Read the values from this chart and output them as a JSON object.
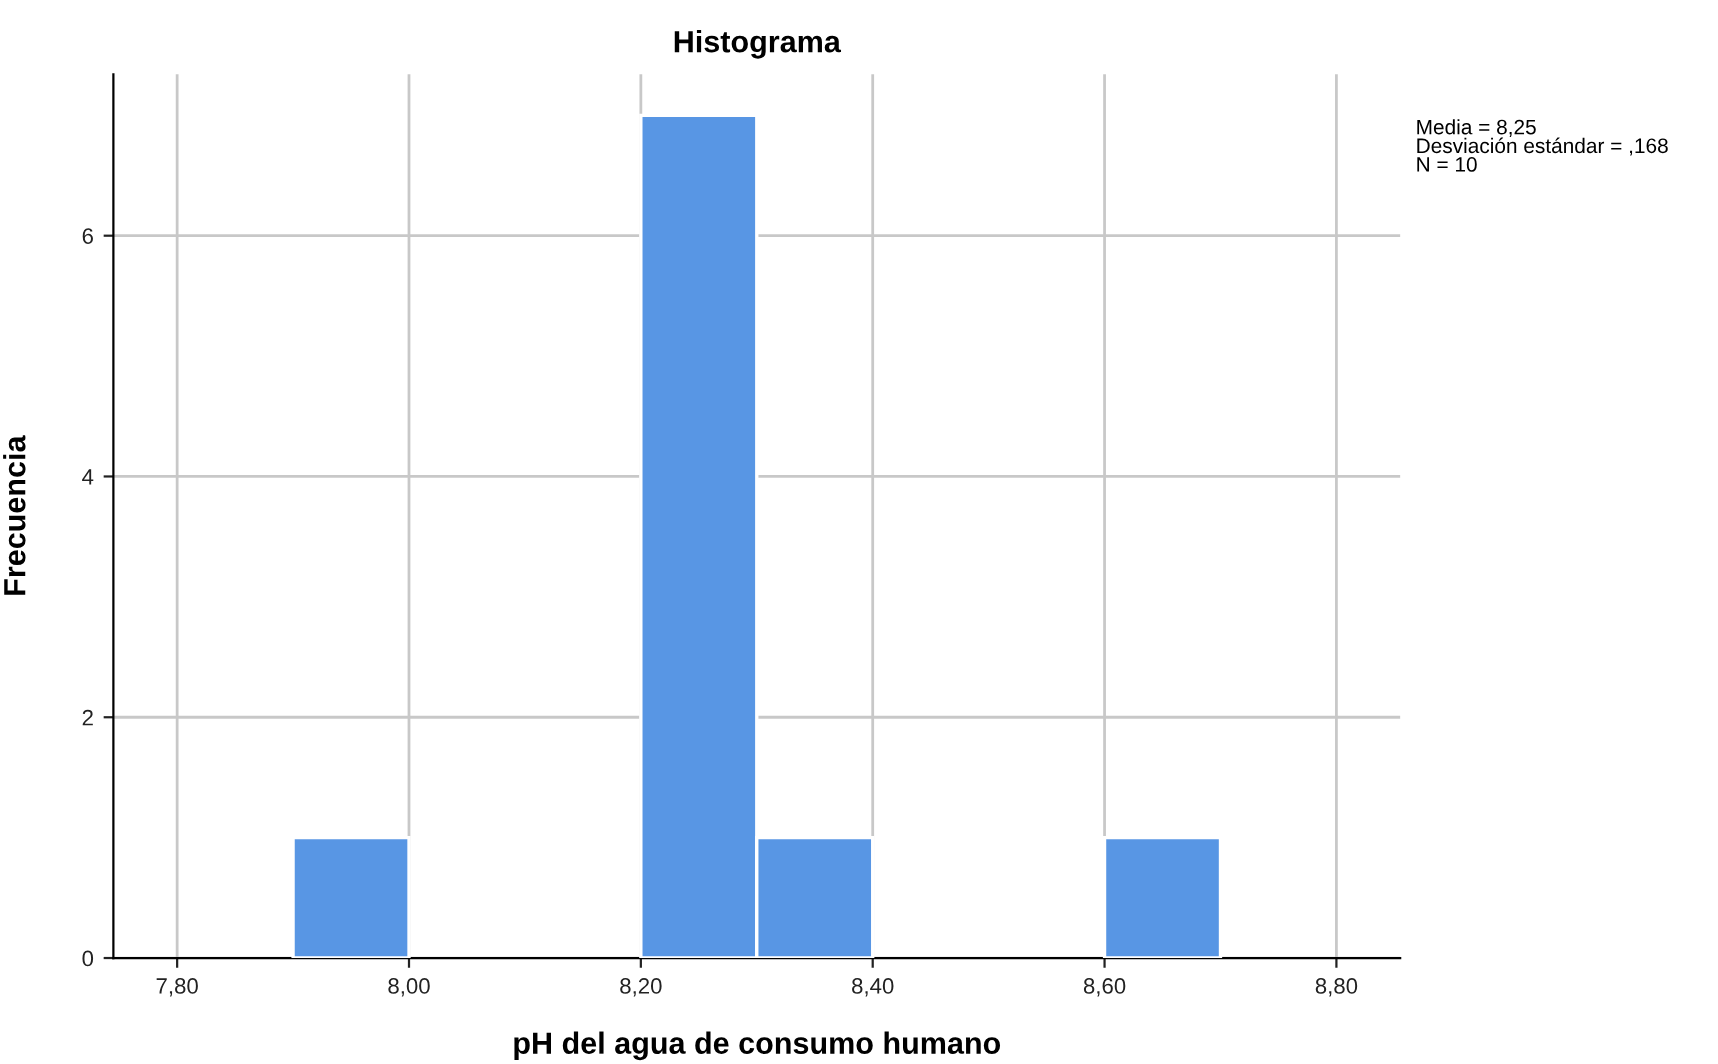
{
  "chart_data": {
    "type": "histogram",
    "title": "Histograma",
    "xlabel": "pH del agua de consumo humano",
    "ylabel": "Frecuencia",
    "bins": [
      7.9,
      8.0,
      8.1,
      8.2,
      8.3,
      8.4,
      8.5,
      8.6,
      8.7
    ],
    "values": [
      1,
      0,
      0,
      7,
      1,
      0,
      0,
      1
    ],
    "color": "#5896e4",
    "xlim": [
      7.745,
      8.855
    ],
    "xticks": [
      {
        "value": 7.8,
        "label": "7,80"
      },
      {
        "value": 8.0,
        "label": "8,00"
      },
      {
        "value": 8.2,
        "label": "8,20"
      },
      {
        "value": 8.4,
        "label": "8,40"
      },
      {
        "value": 8.6,
        "label": "8,60"
      },
      {
        "value": 8.8,
        "label": "8,80"
      }
    ],
    "ylim": [
      0,
      7.34
    ],
    "yticks": [
      0,
      2,
      4,
      6
    ],
    "grid": true,
    "annotations": [
      "Media = 8,25\nDesviación estándar = ,168\nN = 10"
    ]
  }
}
